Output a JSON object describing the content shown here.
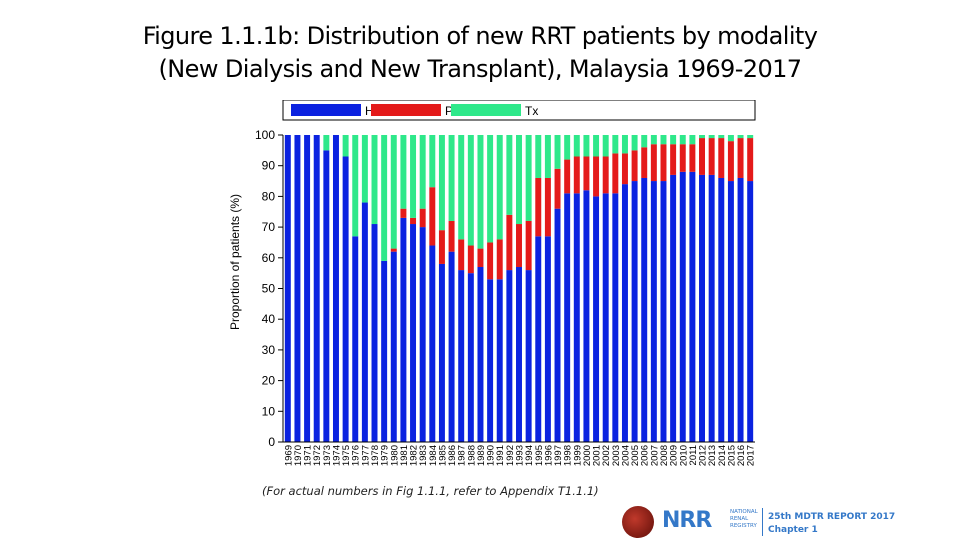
{
  "header": {
    "title_line1": "Figure 1.1.1b: Distribution of new RRT patients by modality",
    "title_line2": "(New Dialysis and New Transplant), Malaysia 1969-2017"
  },
  "note": "(For actual numbers in Fig 1.1.1, refer to Appendix T1.1.1)",
  "footer": {
    "logo_text": "NRR",
    "logo_sub": [
      "NATIONAL",
      "RENAL",
      "REGISTRY"
    ],
    "report_line1": "25th MDTR REPORT 2017",
    "report_line2": "Chapter 1"
  },
  "chart_data": {
    "type": "bar",
    "stacked": true,
    "ylabel": "Proportion  of patients (%)",
    "ylim": [
      0,
      100
    ],
    "yticks": [
      0,
      10,
      20,
      30,
      40,
      50,
      60,
      70,
      80,
      90,
      100
    ],
    "grid": false,
    "legend": "top",
    "categories": [
      "1969",
      "1970",
      "1971",
      "1972",
      "1973",
      "1974",
      "1975",
      "1976",
      "1977",
      "1978",
      "1979",
      "1980",
      "1981",
      "1982",
      "1983",
      "1984",
      "1985",
      "1986",
      "1987",
      "1988",
      "1989",
      "1990",
      "1991",
      "1992",
      "1993",
      "1994",
      "1995",
      "1996",
      "1997",
      "1998",
      "1999",
      "2000",
      "2001",
      "2002",
      "2003",
      "2004",
      "2005",
      "2006",
      "2007",
      "2008",
      "2009",
      "2010",
      "2011",
      "2012",
      "2013",
      "2014",
      "2015",
      "2016",
      "2017"
    ],
    "series": [
      {
        "name": "HD",
        "color": "#0b22e0",
        "values": [
          100,
          100,
          100,
          100,
          95,
          100,
          93,
          67,
          78,
          71,
          59,
          62,
          73,
          71,
          70,
          64,
          58,
          62,
          56,
          55,
          57,
          53,
          53,
          56,
          57,
          56,
          67,
          67,
          76,
          81,
          81,
          82,
          80,
          81,
          81,
          84,
          85,
          86,
          85,
          85,
          87,
          88,
          88,
          87,
          87,
          86,
          85,
          86,
          85
        ]
      },
      {
        "name": "PD",
        "color": "#e41a1a",
        "values": [
          0,
          0,
          0,
          0,
          0,
          0,
          0,
          0,
          0,
          0,
          0,
          1,
          3,
          2,
          6,
          19,
          11,
          10,
          10,
          9,
          6,
          12,
          13,
          18,
          14,
          16,
          19,
          19,
          13,
          11,
          12,
          11,
          13,
          12,
          13,
          10,
          10,
          10,
          12,
          12,
          10,
          9,
          9,
          12,
          12,
          13,
          13,
          13,
          14
        ]
      },
      {
        "name": "Tx",
        "color": "#2ee88a",
        "values": [
          0,
          0,
          0,
          0,
          5,
          0,
          7,
          33,
          22,
          29,
          41,
          37,
          24,
          27,
          24,
          17,
          31,
          28,
          34,
          36,
          37,
          35,
          34,
          26,
          29,
          28,
          14,
          14,
          11,
          8,
          7,
          7,
          7,
          7,
          6,
          6,
          5,
          4,
          3,
          3,
          3,
          3,
          3,
          1,
          1,
          1,
          2,
          1,
          1
        ]
      }
    ]
  }
}
